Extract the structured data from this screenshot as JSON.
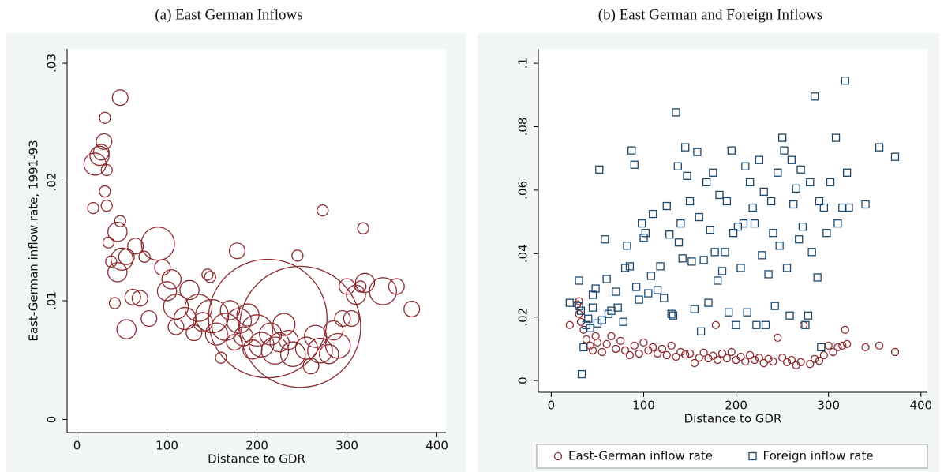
{
  "chart_data": [
    {
      "type": "bubble",
      "title": "(a) East German Inflows",
      "x_label": "Distance to GDR",
      "y_label": "East-German inflow rate, 1991-93",
      "color": "#8c2a2e",
      "x": [
        20,
        18,
        25,
        30,
        31,
        27,
        33,
        31,
        33,
        48,
        45,
        48,
        35,
        38,
        50,
        45,
        55,
        42,
        55,
        62,
        65,
        75,
        70,
        80,
        90,
        95,
        100,
        105,
        110,
        110,
        120,
        125,
        130,
        135,
        140,
        145,
        148,
        150,
        155,
        160,
        165,
        170,
        175,
        178,
        180,
        185,
        190,
        195,
        200,
        205,
        212,
        215,
        220,
        225,
        230,
        235,
        240,
        245,
        248,
        255,
        260,
        265,
        270,
        273,
        280,
        285,
        290,
        295,
        300,
        305,
        310,
        315,
        318,
        320,
        340,
        355,
        372
      ],
      "values": [
        0.0215,
        0.0178,
        0.0222,
        0.0234,
        0.0254,
        0.0225,
        0.021,
        0.0192,
        0.018,
        0.0271,
        0.0158,
        0.0167,
        0.0149,
        0.0133,
        0.0135,
        0.0124,
        0.0137,
        0.0098,
        0.0076,
        0.0103,
        0.0146,
        0.0137,
        0.0102,
        0.0085,
        0.0148,
        0.0128,
        0.0108,
        0.0118,
        0.0095,
        0.0078,
        0.0085,
        0.0109,
        0.0073,
        0.0094,
        0.0082,
        0.0122,
        0.012,
        0.0087,
        0.0072,
        0.0052,
        0.0078,
        0.0092,
        0.0065,
        0.0142,
        0.0083,
        0.007,
        0.0088,
        0.0059,
        0.0075,
        0.0063,
        0.0085,
        0.0072,
        0.0058,
        0.0065,
        0.008,
        0.0067,
        0.0055,
        0.0138,
        0.0078,
        0.006,
        0.0045,
        0.007,
        0.0058,
        0.0176,
        0.0055,
        0.0075,
        0.0062,
        0.0085,
        0.0112,
        0.0085,
        0.0105,
        0.0112,
        0.0161,
        0.0115,
        0.0108,
        0.0112,
        0.0093
      ],
      "sizes": [
        4,
        1,
        3,
        2,
        1,
        2,
        1,
        1,
        1,
        2,
        3,
        1,
        1,
        1,
        4,
        3,
        2,
        1,
        3,
        2,
        2,
        1,
        2,
        2,
        9,
        2,
        3,
        3,
        5,
        2,
        4,
        3,
        2,
        6,
        3,
        1,
        1,
        9,
        4,
        1,
        6,
        3,
        2,
        2,
        5,
        3,
        4,
        3,
        8,
        5,
        115,
        4,
        6,
        3,
        4,
        3,
        5,
        1,
        120,
        4,
        2,
        4,
        5,
        1,
        3,
        3,
        5,
        2,
        2,
        2,
        3,
        1,
        1,
        3,
        6,
        2,
        2
      ],
      "xlim": [
        -11,
        410
      ],
      "ylim": [
        -0.0011,
        0.0312
      ],
      "xticks": [
        0,
        100,
        200,
        300,
        400
      ],
      "yticks": [
        0,
        {
          "value": 0.01,
          "label": ".01"
        },
        {
          "value": 0.02,
          "label": ".02"
        },
        {
          "value": 0.03,
          "label": ".03"
        }
      ]
    },
    {
      "type": "scatter",
      "title": "(b) East German and Foreign Inflows",
      "x_label": "Distance to GDR",
      "series": [
        {
          "name": "East-German inflow rate",
          "color": "#8c2a2e",
          "marker": "circle",
          "x": [
            20,
            28,
            30,
            30,
            32,
            35,
            38,
            42,
            45,
            48,
            50,
            55,
            60,
            65,
            70,
            75,
            80,
            85,
            90,
            95,
            100,
            105,
            110,
            115,
            120,
            125,
            130,
            135,
            140,
            145,
            150,
            155,
            160,
            165,
            170,
            175,
            178,
            180,
            185,
            190,
            195,
            200,
            205,
            210,
            215,
            220,
            225,
            230,
            235,
            240,
            245,
            250,
            255,
            260,
            265,
            270,
            273,
            280,
            285,
            290,
            295,
            300,
            305,
            310,
            315,
            318,
            320,
            340,
            355,
            372
          ],
          "values": [
            0.0175,
            0.024,
            0.025,
            0.021,
            0.0185,
            0.016,
            0.013,
            0.011,
            0.0095,
            0.014,
            0.012,
            0.009,
            0.0115,
            0.014,
            0.01,
            0.0125,
            0.0095,
            0.008,
            0.011,
            0.0085,
            0.012,
            0.0095,
            0.0105,
            0.0085,
            0.01,
            0.008,
            0.011,
            0.0075,
            0.009,
            0.0082,
            0.0085,
            0.0055,
            0.0072,
            0.0088,
            0.007,
            0.0078,
            0.0175,
            0.0065,
            0.0085,
            0.007,
            0.009,
            0.0065,
            0.0075,
            0.006,
            0.008,
            0.0065,
            0.0072,
            0.0055,
            0.0068,
            0.006,
            0.0135,
            0.0072,
            0.0058,
            0.0065,
            0.0048,
            0.0058,
            0.0175,
            0.0052,
            0.0068,
            0.0062,
            0.008,
            0.011,
            0.009,
            0.0105,
            0.011,
            0.016,
            0.0115,
            0.0105,
            0.011,
            0.009
          ]
        },
        {
          "name": "Foreign inflow rate",
          "color": "#1a476f",
          "marker": "square",
          "x": [
            20,
            30,
            30,
            32,
            33,
            35,
            38,
            40,
            42,
            45,
            45,
            48,
            50,
            52,
            55,
            58,
            60,
            62,
            65,
            70,
            72,
            78,
            80,
            82,
            85,
            87,
            90,
            92,
            95,
            98,
            100,
            102,
            105,
            108,
            110,
            115,
            118,
            122,
            125,
            128,
            130,
            132,
            135,
            137,
            138,
            140,
            142,
            145,
            147,
            150,
            152,
            155,
            158,
            160,
            162,
            165,
            168,
            170,
            172,
            175,
            177,
            180,
            182,
            185,
            188,
            190,
            192,
            195,
            197,
            200,
            202,
            205,
            208,
            210,
            212,
            215,
            218,
            220,
            222,
            225,
            228,
            230,
            232,
            235,
            238,
            240,
            242,
            245,
            247,
            250,
            252,
            255,
            258,
            260,
            262,
            265,
            268,
            270,
            272,
            275,
            278,
            280,
            282,
            285,
            288,
            290,
            292,
            295,
            298,
            302,
            308,
            310,
            315,
            318,
            320,
            322,
            340,
            355,
            372
          ],
          "values": [
            0.0245,
            0.0235,
            0.0315,
            0.022,
            0.002,
            0.0105,
            0.0175,
            0.0195,
            0.0165,
            0.023,
            0.027,
            0.029,
            0.018,
            0.0665,
            0.019,
            0.0445,
            0.032,
            0.021,
            0.022,
            0.028,
            0.023,
            0.0185,
            0.0355,
            0.0425,
            0.036,
            0.0725,
            0.068,
            0.0295,
            0.0255,
            0.0495,
            0.045,
            0.0465,
            0.0275,
            0.033,
            0.0525,
            0.0285,
            0.036,
            0.026,
            0.055,
            0.046,
            0.021,
            0.0205,
            0.0845,
            0.0675,
            0.0435,
            0.0495,
            0.0385,
            0.0735,
            0.0645,
            0.0565,
            0.0375,
            0.0225,
            0.072,
            0.0515,
            0.0155,
            0.038,
            0.0625,
            0.0245,
            0.0475,
            0.0655,
            0.0405,
            0.0315,
            0.0585,
            0.0345,
            0.0405,
            0.0565,
            0.0215,
            0.0725,
            0.0465,
            0.0175,
            0.0485,
            0.0355,
            0.0495,
            0.0675,
            0.0215,
            0.0625,
            0.0545,
            0.0495,
            0.0175,
            0.0695,
            0.0395,
            0.0595,
            0.0175,
            0.0335,
            0.0565,
            0.0465,
            0.0235,
            0.0655,
            0.0425,
            0.0765,
            0.0725,
            0.0355,
            0.0205,
            0.0695,
            0.0555,
            0.0605,
            0.0445,
            0.0665,
            0.0485,
            0.0175,
            0.0205,
            0.0625,
            0.0405,
            0.0895,
            0.0325,
            0.0565,
            0.0105,
            0.0545,
            0.0465,
            0.0625,
            0.0765,
            0.0495,
            0.0545,
            0.0945,
            0.0655,
            0.0545,
            0.0555,
            0.0735,
            0.0705
          ]
        }
      ],
      "xlim": [
        -14,
        407
      ],
      "ylim": [
        -0.0037,
        0.1045
      ],
      "xticks": [
        0,
        100,
        200,
        300,
        400
      ],
      "yticks": [
        0,
        {
          "value": 0.02,
          "label": ".02"
        },
        {
          "value": 0.04,
          "label": ".04"
        },
        {
          "value": 0.06,
          "label": ".06"
        },
        {
          "value": 0.08,
          "label": ".08"
        },
        {
          "value": 0.1,
          "label": ".1"
        }
      ],
      "legend": "bottom"
    }
  ]
}
